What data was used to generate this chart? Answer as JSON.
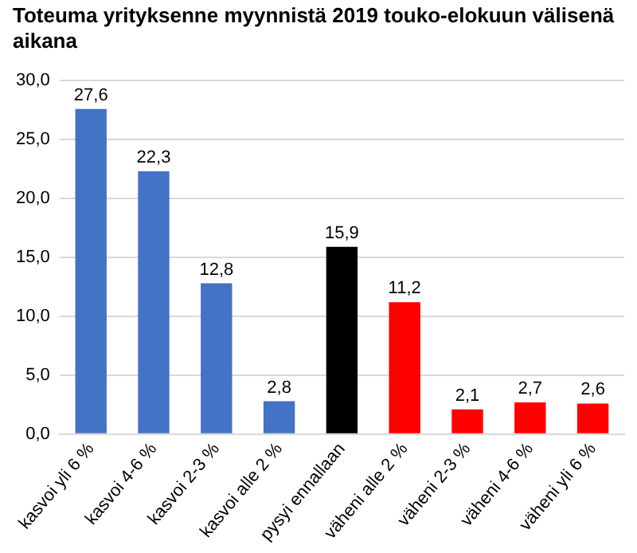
{
  "chart_data": {
    "type": "bar",
    "title": "Toteuma yrityksenne myynnistä 2019 touko-elokuun välisenä aikana",
    "categories": [
      "kasvoi yli 6 %",
      "kasvoi 4-6 %",
      "kasvoi 2-3 %",
      "kasvoi alle 2 %",
      "pysyi ennallaan",
      "väheni alle 2 %",
      "väheni 2-3 %",
      "väheni 4-6 %",
      "väheni yli 6 %"
    ],
    "values": [
      27.6,
      22.3,
      12.8,
      2.8,
      15.9,
      11.2,
      2.1,
      2.7,
      2.6
    ],
    "colors": [
      "#4472c4",
      "#4472c4",
      "#4472c4",
      "#4472c4",
      "#000000",
      "#ff0000",
      "#ff0000",
      "#ff0000",
      "#ff0000"
    ],
    "value_labels": [
      "27,6",
      "22,3",
      "12,8",
      "2,8",
      "15,9",
      "11,2",
      "2,1",
      "2,7",
      "2,6"
    ],
    "ylim": [
      0,
      30
    ],
    "yticks": [
      {
        "value": 0,
        "label": "0,0"
      },
      {
        "value": 5,
        "label": "5,0"
      },
      {
        "value": 10,
        "label": "10,0"
      },
      {
        "value": 15,
        "label": "15,0"
      },
      {
        "value": 20,
        "label": "20,0"
      },
      {
        "value": 25,
        "label": "25,0"
      },
      {
        "value": 30,
        "label": "30,0"
      }
    ],
    "grid": "y",
    "legend": false
  }
}
